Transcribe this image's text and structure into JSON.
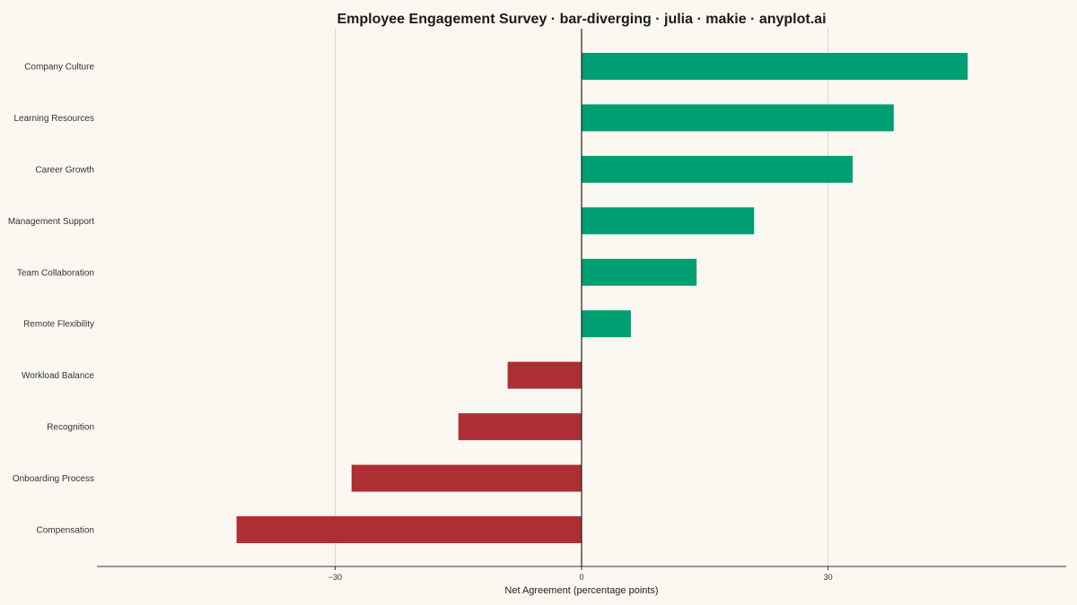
{
  "chart_data": {
    "type": "bar",
    "orientation": "horizontal",
    "title": "Employee Engagement Survey · bar-diverging · julia · makie · anyplot.ai",
    "xlabel": "Net Agreement (percentage points)",
    "ylabel": "",
    "xlim": [
      -59,
      59
    ],
    "xticks": [
      -30,
      0,
      30
    ],
    "xtick_labels": [
      "−30",
      "0",
      "30"
    ],
    "grid": true,
    "legend": "none",
    "categories": [
      "Company Culture",
      "Learning Resources",
      "Career Growth",
      "Management Support",
      "Team Collaboration",
      "Remote Flexibility",
      "Workload Balance",
      "Recognition",
      "Onboarding Process",
      "Compensation"
    ],
    "values": [
      47,
      38,
      33,
      21,
      14,
      6,
      -9,
      -15,
      -28,
      -42
    ],
    "colors": {
      "positive": "#009E73",
      "negative": "#AD2E33"
    }
  }
}
